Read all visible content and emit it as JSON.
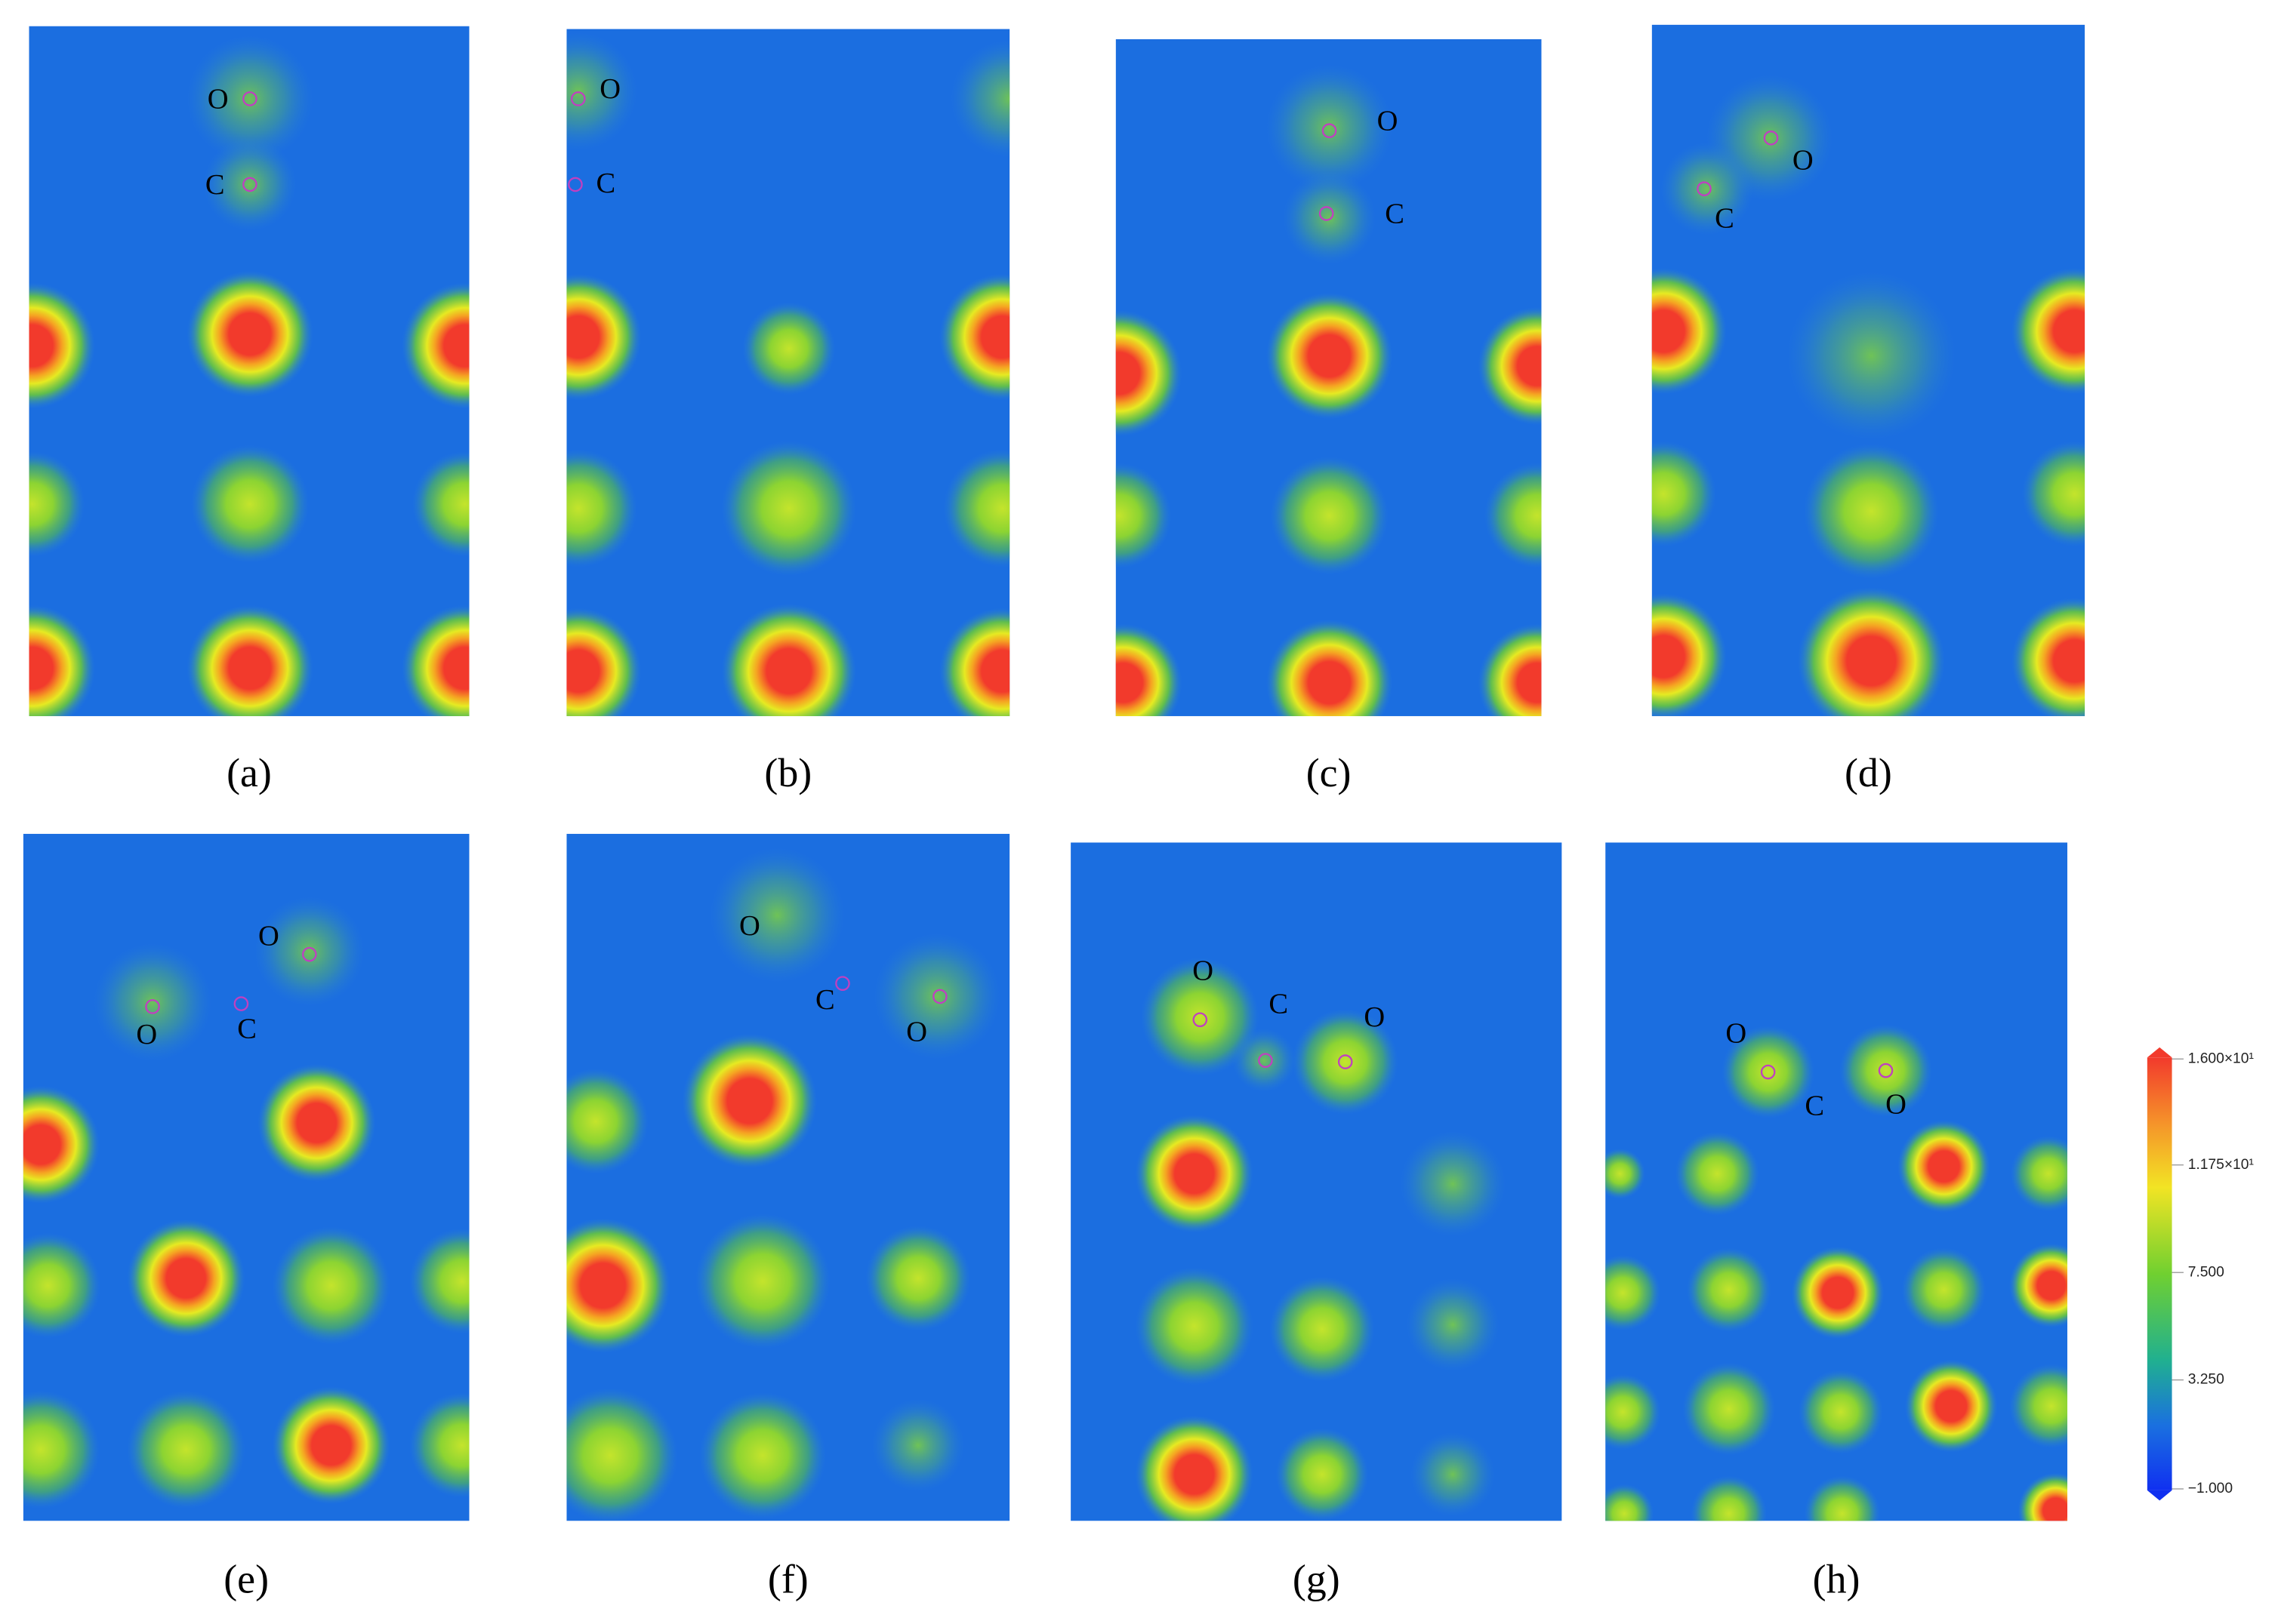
{
  "panels": [
    {
      "label": "(a)",
      "atoms": [
        "O",
        "C"
      ]
    },
    {
      "label": "(b)",
      "atoms": [
        "O",
        "C"
      ]
    },
    {
      "label": "(c)",
      "atoms": [
        "O",
        "C"
      ]
    },
    {
      "label": "(d)",
      "atoms": [
        "O",
        "C"
      ]
    },
    {
      "label": "(e)",
      "atoms": [
        "O",
        "O",
        "C"
      ]
    },
    {
      "label": "(f)",
      "atoms": [
        "O",
        "C",
        "O"
      ]
    },
    {
      "label": "(g)",
      "atoms": [
        "O",
        "C",
        "O"
      ]
    },
    {
      "label": "(h)",
      "atoms": [
        "O",
        "C",
        "O"
      ]
    }
  ],
  "colorbar": {
    "ticks": [
      "1.600×10¹",
      "1.175×10¹",
      "7.500",
      "3.250",
      "−1.000"
    ]
  }
}
